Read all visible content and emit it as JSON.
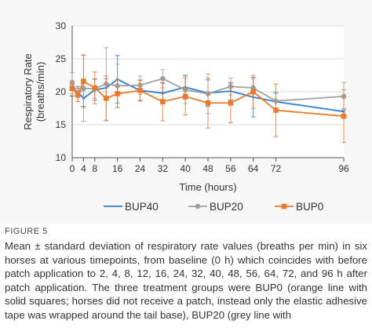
{
  "chart_data": {
    "type": "line",
    "xlabel": "Time (hours)",
    "ylabel_line1": "Respiratory Rate",
    "ylabel_line2": "(breaths/min)",
    "xlim": [
      0,
      96
    ],
    "ylim": [
      10,
      30
    ],
    "x_ticks": [
      0,
      4,
      8,
      16,
      24,
      32,
      40,
      48,
      56,
      64,
      72,
      96
    ],
    "y_ticks": [
      10,
      15,
      20,
      25,
      30
    ],
    "legend_position": "bottom",
    "series": [
      {
        "name": "BUP40",
        "color": "#2f7fcf",
        "marker": "none",
        "points": [
          {
            "x": 0,
            "y": 20.4,
            "sd": 1.0
          },
          {
            "x": 2,
            "y": 20.0,
            "sd": 0.8
          },
          {
            "x": 4,
            "y": 19.0,
            "sd": 1.2
          },
          {
            "x": 8,
            "y": 20.3,
            "sd": 1.6
          },
          {
            "x": 12,
            "y": 20.6,
            "sd": 1.4
          },
          {
            "x": 16,
            "y": 21.9,
            "sd": 3.6
          },
          {
            "x": 24,
            "y": 20.2,
            "sd": 1.6
          },
          {
            "x": 32,
            "y": 19.8,
            "sd": 1.5
          },
          {
            "x": 40,
            "y": 20.7,
            "sd": 1.8
          },
          {
            "x": 48,
            "y": 19.8,
            "sd": 2.0
          },
          {
            "x": 56,
            "y": 20.1,
            "sd": 1.3
          },
          {
            "x": 64,
            "y": 19.2,
            "sd": 3.0
          },
          {
            "x": 72,
            "y": 18.5,
            "sd": 1.3
          },
          {
            "x": 96,
            "y": 17.0,
            "sd": 0.4
          }
        ]
      },
      {
        "name": "BUP20",
        "color": "#a0a0a0",
        "marker": "circle",
        "points": [
          {
            "x": 0,
            "y": 21.3,
            "sd": 1.6
          },
          {
            "x": 2,
            "y": 19.5,
            "sd": 1.0
          },
          {
            "x": 4,
            "y": 20.5,
            "sd": 5.0
          },
          {
            "x": 8,
            "y": 20.5,
            "sd": 1.5
          },
          {
            "x": 12,
            "y": 21.2,
            "sd": 5.5
          },
          {
            "x": 16,
            "y": 20.9,
            "sd": 3.3
          },
          {
            "x": 24,
            "y": 21.0,
            "sd": 1.4
          },
          {
            "x": 32,
            "y": 22.0,
            "sd": 1.4
          },
          {
            "x": 40,
            "y": 20.3,
            "sd": 2.1
          },
          {
            "x": 48,
            "y": 19.7,
            "sd": 3.0
          },
          {
            "x": 56,
            "y": 20.8,
            "sd": 1.3
          },
          {
            "x": 64,
            "y": 20.6,
            "sd": 1.4
          },
          {
            "x": 72,
            "y": 18.6,
            "sd": 1.4
          },
          {
            "x": 96,
            "y": 19.3,
            "sd": 2.1
          }
        ]
      },
      {
        "name": "BUP0",
        "color": "#e87a2c",
        "marker": "square",
        "points": [
          {
            "x": 0,
            "y": 20.5,
            "sd": 1.2
          },
          {
            "x": 2,
            "y": 19.5,
            "sd": 1.0
          },
          {
            "x": 4,
            "y": 21.6,
            "sd": 4.0
          },
          {
            "x": 8,
            "y": 20.6,
            "sd": 2.4
          },
          {
            "x": 12,
            "y": 19.0,
            "sd": 3.4
          },
          {
            "x": 16,
            "y": 19.7,
            "sd": 2.1
          },
          {
            "x": 24,
            "y": 20.2,
            "sd": 1.5
          },
          {
            "x": 32,
            "y": 18.5,
            "sd": 2.9
          },
          {
            "x": 40,
            "y": 19.3,
            "sd": 2.8
          },
          {
            "x": 48,
            "y": 18.3,
            "sd": 3.8
          },
          {
            "x": 56,
            "y": 18.3,
            "sd": 3.0
          },
          {
            "x": 64,
            "y": 20.0,
            "sd": 2.5
          },
          {
            "x": 72,
            "y": 17.2,
            "sd": 4.0
          },
          {
            "x": 96,
            "y": 16.3,
            "sd": 4.0
          }
        ]
      }
    ]
  },
  "figure": {
    "label": "FIGURE 5",
    "caption": "Mean ± standard deviation of respiratory rate values (breaths per min) in six horses at various timepoints, from baseline (0 h) which coincides with before patch application to 2, 4, 8, 12, 16, 24, 32, 40, 48, 56, 64, 72, and 96 h after patch application. The three treatment groups were BUP0 (orange line with solid squares; horses did not receive a patch, instead only the elastic adhesive tape was wrapped around the tail base), BUP20 (grey line with"
  }
}
